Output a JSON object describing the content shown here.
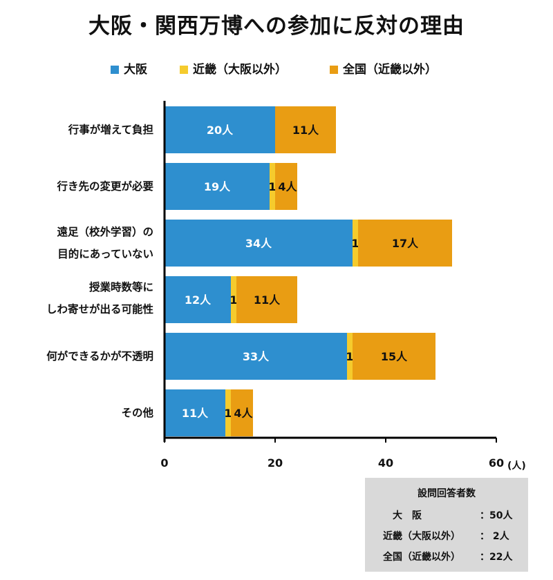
{
  "chart_data": {
    "type": "bar",
    "orientation": "horizontal",
    "stacked": true,
    "title": "大阪・関西万博への参加に反対の理由",
    "categories": [
      [
        "行事が増えて負担"
      ],
      [
        "行き先の変更が必要"
      ],
      [
        "遠足（校外学習）の",
        "目的にあっていない"
      ],
      [
        "授業時数等に",
        "しわ寄せが出る可能性"
      ],
      [
        "何ができるかが不透明"
      ],
      [
        "その他"
      ]
    ],
    "series": [
      {
        "name": "大阪",
        "color": "#2e8fcf",
        "values": [
          20,
          19,
          34,
          12,
          33,
          11
        ],
        "labels": [
          "20人",
          "19人",
          "34人",
          "12人",
          "33人",
          "11人"
        ]
      },
      {
        "name": "近畿（大阪以外）",
        "color": "#f5cb2d",
        "values": [
          0,
          1,
          1,
          1,
          1,
          1
        ],
        "labels": [
          "",
          "1",
          "1",
          "1",
          "1",
          "1"
        ]
      },
      {
        "name": "全国（近畿以外）",
        "color": "#e99d13",
        "values": [
          11,
          4,
          17,
          11,
          15,
          4
        ],
        "labels": [
          "11人",
          "4人",
          "17人",
          "11人",
          "15人",
          "4人"
        ]
      }
    ],
    "xlim": [
      0,
      60
    ],
    "xticks": [
      0,
      20,
      40,
      60
    ],
    "xtick_labels": [
      "0",
      "20",
      "40",
      "60"
    ],
    "xunit": "(人)",
    "legend_position": "top"
  },
  "respondents": {
    "title": "設問回答者数",
    "rows": [
      {
        "label": "大　阪",
        "value": "：50人"
      },
      {
        "label": "近畿（大阪以外）",
        "value": "：  2人"
      },
      {
        "label": "全国（近畿以外）",
        "value": "：22人"
      }
    ]
  }
}
